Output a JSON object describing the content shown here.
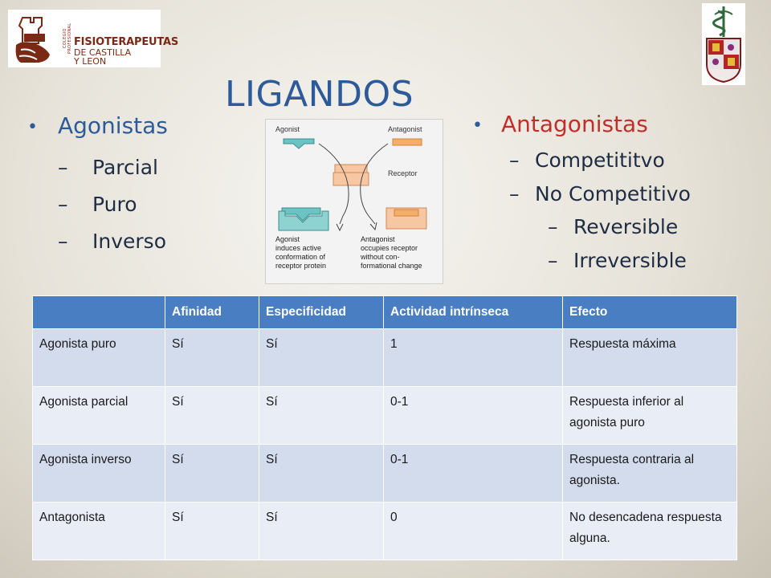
{
  "logo_left": {
    "name": "FISIOTERAPEUTAS",
    "line2": "DE CASTILLA",
    "line3": "Y LEON",
    "vertical": "COLEGIO PROFESIONAL"
  },
  "title": "LIGANDOS",
  "agonists": {
    "heading": "Agonistas",
    "items": [
      "Parcial",
      "Puro",
      "Inverso"
    ]
  },
  "antagonists": {
    "heading": "Antagonistas",
    "items": [
      "Competititvo",
      "No Competitivo"
    ],
    "subitems": [
      "Reversible",
      "Irreversible"
    ]
  },
  "diagram": {
    "agonist": "Agonist",
    "antagonist": "Antagonist",
    "receptor": "Receptor",
    "caption_left": [
      "Agonist",
      "induces active",
      "conformation of",
      "receptor protein"
    ],
    "caption_right": [
      "Antagonist",
      "occupies receptor",
      "without con-",
      "formational change"
    ]
  },
  "table": {
    "headers": [
      "",
      "Afinidad",
      "Especificidad",
      "Actividad intrínseca",
      "Efecto"
    ],
    "rows": [
      {
        "c0": "Agonista puro",
        "c1": "Sí",
        "c2": "Sí",
        "c3": "1",
        "c4": "Respuesta máxima"
      },
      {
        "c0": "Agonista parcial",
        "c1": "Sí",
        "c2": "Sí",
        "c3": "0-1",
        "c4": "Respuesta inferior al agonista puro"
      },
      {
        "c0": "Agonista inverso",
        "c1": "Sí",
        "c2": "Sí",
        "c3": "0-1",
        "c4": "Respuesta contraria al agonista."
      },
      {
        "c0": "Antagonista",
        "c1": "Sí",
        "c2": "Sí",
        "c3": "0",
        "c4": "No desencadena respuesta alguna."
      }
    ]
  },
  "colors": {
    "title_blue": "#2d5b9a",
    "antagonist_red": "#c0302a",
    "header_blue": "#4a7ec2",
    "row_dark": "#d3dcec",
    "row_light": "#e9edf5"
  }
}
